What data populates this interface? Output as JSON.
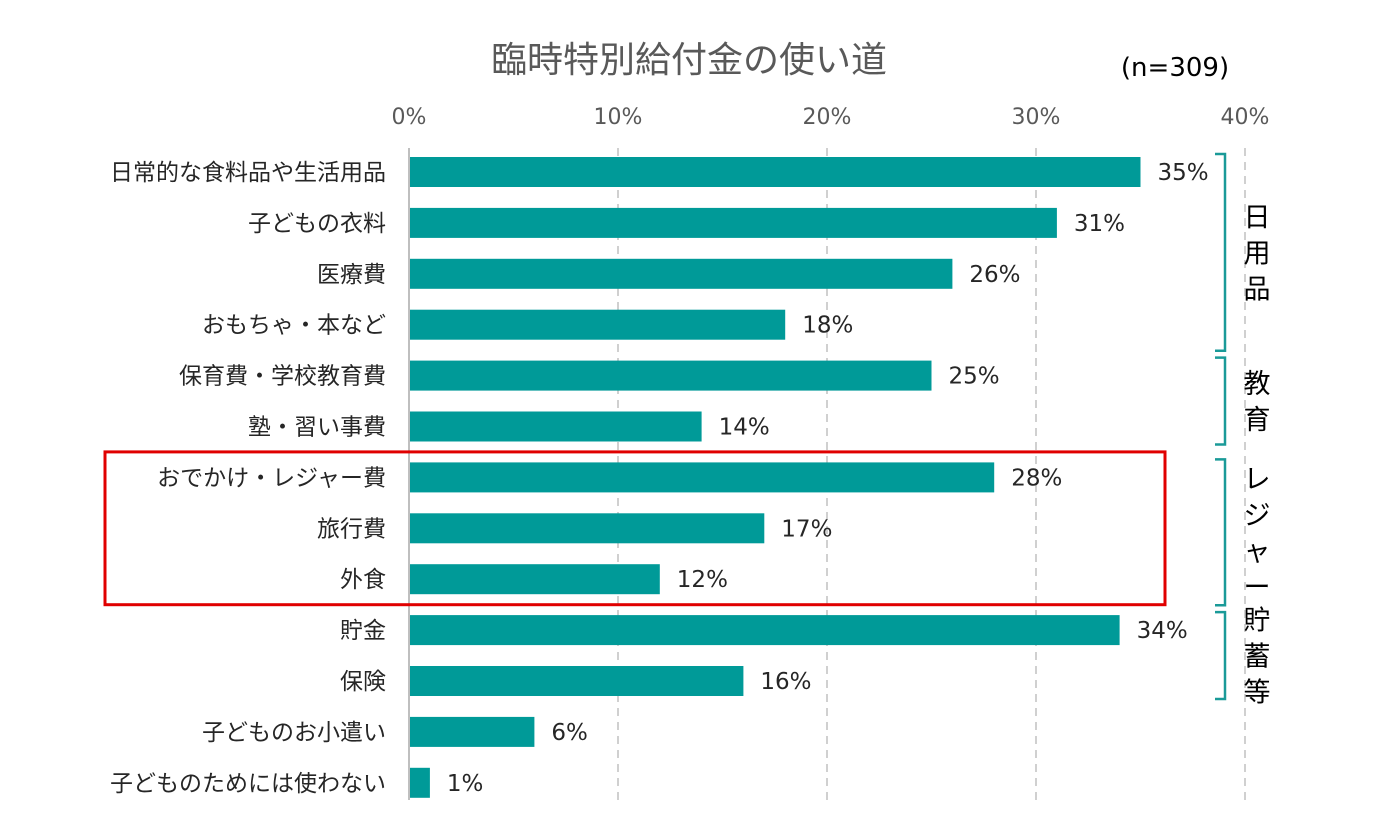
{
  "chart_data": {
    "type": "bar",
    "orientation": "horizontal",
    "title": "臨時特別給付金の使い道",
    "sample_size": "(n=309)",
    "xlim": [
      0,
      40
    ],
    "xticks": [
      "0%",
      "10%",
      "20%",
      "30%",
      "40%"
    ],
    "grid": "vertical dashed",
    "bar_color": "#009a98",
    "highlight_color": "#e00000",
    "bracket_color": "#1a9a98",
    "categories": [
      "日常的な食料品や生活用品",
      "子どもの衣料",
      "医療費",
      "おもちゃ・本など",
      "保育費・学校教育費",
      "塾・習い事費",
      "おでかけ・レジャー費",
      "旅行費",
      "外食",
      "貯金",
      "保険",
      "子どものお小遣い",
      "子どものためには使わない"
    ],
    "values": [
      35,
      31,
      26,
      18,
      25,
      14,
      28,
      17,
      12,
      34,
      16,
      6,
      1
    ],
    "value_labels": [
      "35%",
      "31%",
      "26%",
      "18%",
      "25%",
      "14%",
      "28%",
      "17%",
      "12%",
      "34%",
      "16%",
      "6%",
      "1%"
    ],
    "groups": [
      {
        "label": "日用品",
        "first": 0,
        "last": 3
      },
      {
        "label": "教育",
        "first": 4,
        "last": 5
      },
      {
        "label": "レジャー",
        "first": 6,
        "last": 8
      },
      {
        "label": "貯蓄等",
        "first": 9,
        "last": 10
      }
    ],
    "highlight": {
      "first": 6,
      "last": 8
    }
  }
}
